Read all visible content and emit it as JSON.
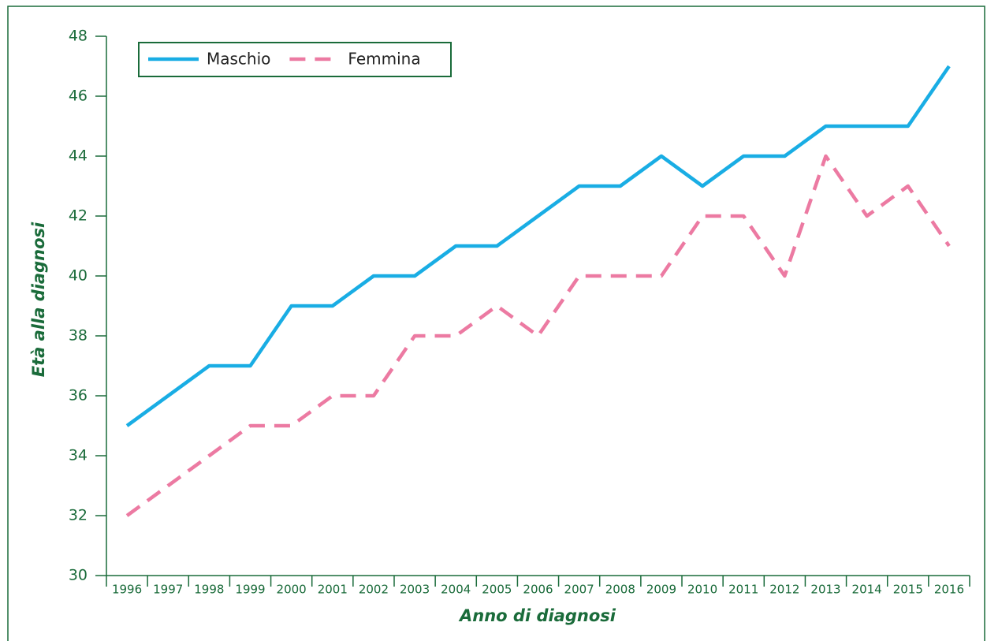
{
  "chart_data": {
    "type": "line",
    "xlabel": "Anno di diagnosi",
    "ylabel": "Età alla diagnosi",
    "categories": [
      "1996",
      "1997",
      "1998",
      "1999",
      "2000",
      "2001",
      "2002",
      "2003",
      "2004",
      "2005",
      "2006",
      "2007",
      "2008",
      "2009",
      "2010",
      "2011",
      "2012",
      "2013",
      "2014",
      "2015",
      "2016"
    ],
    "series": [
      {
        "name": "Maschio",
        "color": "#19ade4",
        "dash": "solid",
        "values": [
          35,
          36,
          37,
          37,
          39,
          39,
          40,
          40,
          41,
          41,
          42,
          43,
          43,
          44,
          43,
          44,
          44,
          45,
          45,
          45,
          47
        ]
      },
      {
        "name": "Femmina",
        "color": "#ec7aa2",
        "dash": "dashed",
        "values": [
          32,
          33,
          34,
          35,
          35,
          36,
          36,
          38,
          38,
          39,
          38,
          40,
          40,
          40,
          42,
          42,
          40,
          44,
          42,
          43,
          41
        ]
      }
    ],
    "ylim": [
      30,
      48
    ],
    "yticks": [
      30,
      32,
      34,
      36,
      38,
      40,
      42,
      44,
      46,
      48
    ],
    "grid": false,
    "legend": "top-left"
  }
}
